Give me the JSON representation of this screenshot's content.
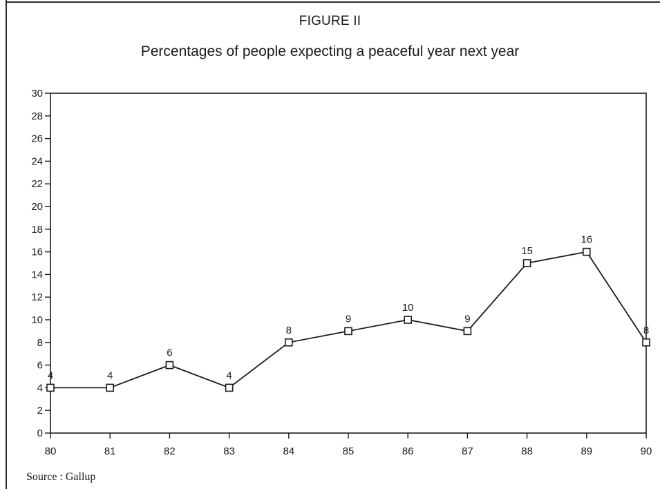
{
  "figure_label": "FIGURE II",
  "source_text": "Source :  Gallup",
  "chart_data": {
    "type": "line",
    "title": "Percentages of people expecting a peaceful year next year",
    "xlabel": "",
    "ylabel": "",
    "categories": [
      "80",
      "81",
      "82",
      "83",
      "84",
      "85",
      "86",
      "87",
      "88",
      "89",
      "90"
    ],
    "series": [
      {
        "values": [
          4,
          4,
          6,
          4,
          8,
          9,
          10,
          9,
          15,
          16,
          8
        ]
      }
    ],
    "data_labels": [
      "4",
      "4",
      "6",
      "4",
      "8",
      "9",
      "10",
      "9",
      "15",
      "16",
      "8"
    ],
    "ylim": [
      0,
      30
    ],
    "y_ticks": [
      "0",
      "2",
      "4",
      "6",
      "8",
      "10",
      "12",
      "14",
      "16",
      "18",
      "20",
      "22",
      "24",
      "26",
      "28",
      "30"
    ],
    "grid": false,
    "legend": "none",
    "marker": "square",
    "line_color": "#1a1a1a"
  }
}
